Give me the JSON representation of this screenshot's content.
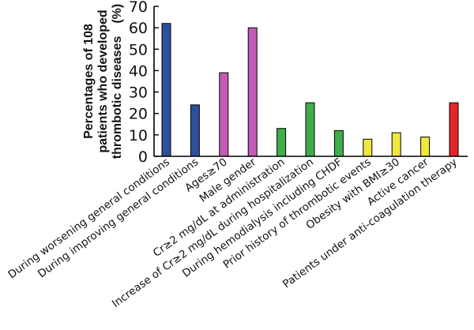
{
  "chart_data": {
    "type": "bar",
    "title": "",
    "xlabel": "",
    "ylabel_lines": [
      "Percentages of 108",
      "patients who developed",
      "thrombotic diseases　(%)"
    ],
    "ylim": [
      0,
      70
    ],
    "yticks": [
      0,
      10,
      20,
      30,
      40,
      50,
      60,
      70
    ],
    "grid": false,
    "categories": [
      "During worsening general conditions",
      "During improving general conditions",
      "Ages≥70",
      "Male gender",
      "Cr≥2 mg/dL at administration",
      "Increase of Cr≥2 mg/dL during hospitalization",
      "During hemodialysis including CHDF",
      "Prior history of thrombotic events",
      "Obesity with BMI≥30",
      "Active cancer",
      "Patients under anti-coagulation therapy"
    ],
    "values": [
      62,
      24,
      39,
      60,
      13,
      25,
      12,
      8,
      11,
      9,
      25
    ],
    "colors": [
      "#2e4f9c",
      "#2e4f9c",
      "#c35bb4",
      "#c35bb4",
      "#3fad4a",
      "#3fad4a",
      "#3fad4a",
      "#f0e640",
      "#f0e640",
      "#f0e640",
      "#e8242b"
    ]
  }
}
